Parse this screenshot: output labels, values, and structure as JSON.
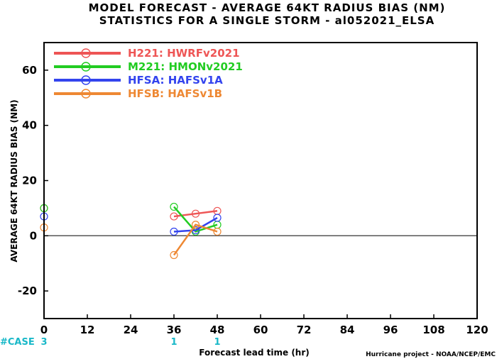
{
  "title_line1": "MODEL FORECAST - AVERAGE 64KT RADIUS BIAS (NM)",
  "title_line2": "STATISTICS FOR A SINGLE STORM - al052021_ELSA",
  "case_label": "#CASE",
  "credit": "Hurricane project - NOAA/NCEP/EMC",
  "colors": {
    "zero_line": "#555555",
    "case_counts": "#19b8c8",
    "axis": "#000000"
  },
  "chart_data": {
    "type": "line",
    "xlabel": "Forecast lead time (hr)",
    "ylabel": "AVERAGE 64KT RADIUS BIAS (NM)",
    "xlim": [
      0,
      120
    ],
    "ylim": [
      -30,
      70
    ],
    "xticks": [
      0,
      12,
      24,
      36,
      48,
      60,
      72,
      84,
      96,
      108,
      120
    ],
    "yticks": [
      -20,
      0,
      20,
      40,
      60
    ],
    "grid": false,
    "legend_position": "top-left",
    "case_counts": [
      {
        "x": 0,
        "label": "3"
      },
      {
        "x": 36,
        "label": "1"
      },
      {
        "x": 48,
        "label": "1"
      }
    ],
    "series": [
      {
        "name": "H221: HWRFv2021",
        "color": "#ee5555",
        "points": [
          [
            0,
            10
          ],
          [
            36,
            7
          ],
          [
            42,
            8
          ],
          [
            48,
            9
          ]
        ]
      },
      {
        "name": "M221: HMONv2021",
        "color": "#22cc22",
        "points": [
          [
            0,
            10
          ],
          [
            36,
            10.5
          ],
          [
            42,
            1.5
          ],
          [
            48,
            4
          ]
        ]
      },
      {
        "name": "HFSA: HAFSv1A",
        "color": "#3344ee",
        "points": [
          [
            0,
            7
          ],
          [
            36,
            1.5
          ],
          [
            42,
            2
          ],
          [
            48,
            6.5
          ]
        ]
      },
      {
        "name": "HFSB: HAFSv1B",
        "color": "#ee8833",
        "points": [
          [
            0,
            3
          ],
          [
            36,
            -7
          ],
          [
            42,
            4
          ],
          [
            48,
            1.5
          ]
        ]
      }
    ]
  }
}
